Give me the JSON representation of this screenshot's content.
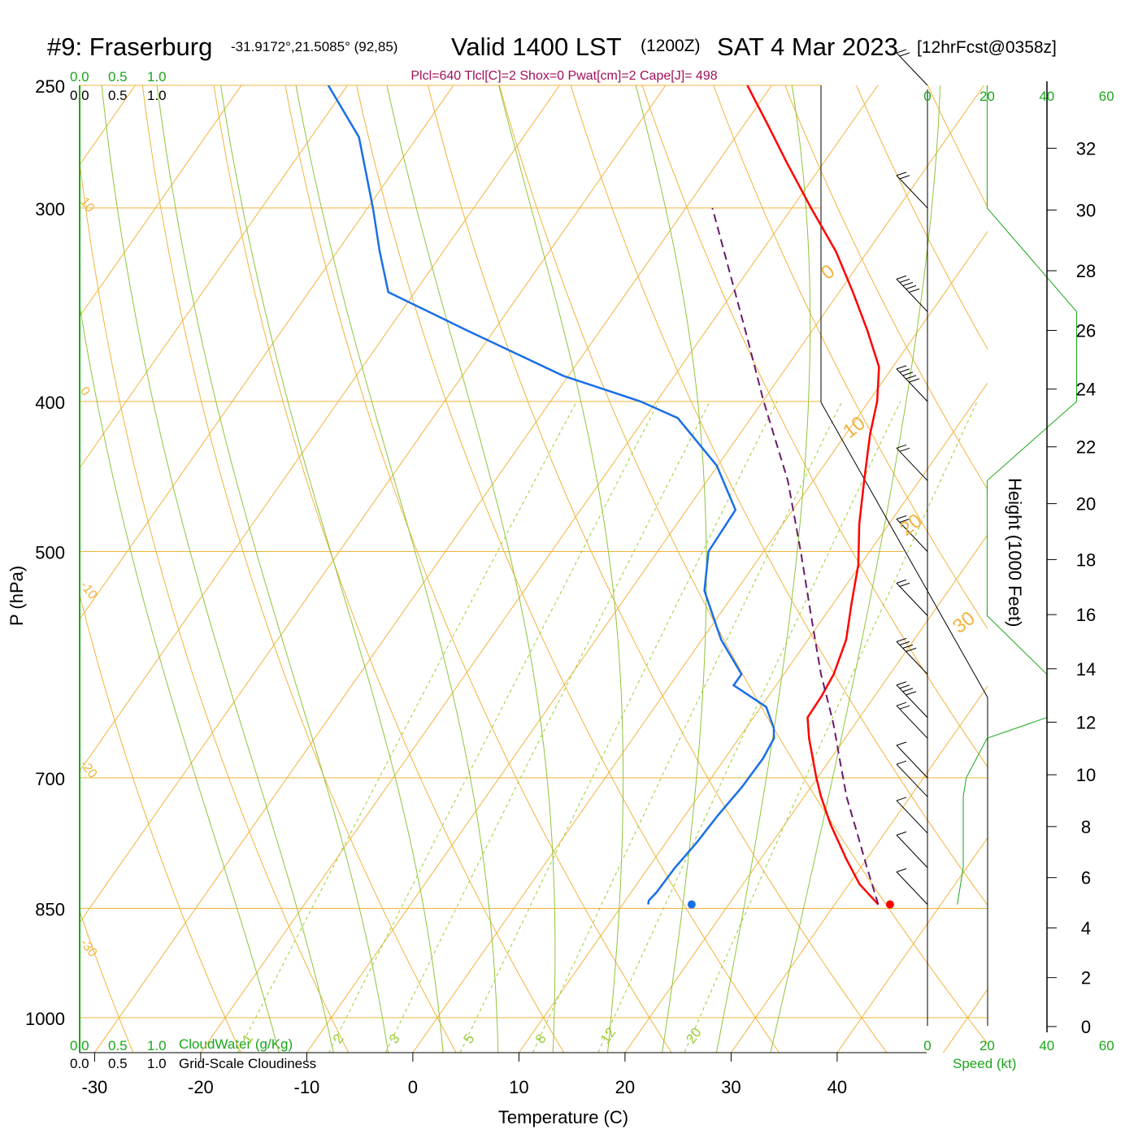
{
  "header": {
    "station": "#9: Fraserburg",
    "coords": "-31.9172°,21.5085° (92,85)",
    "valid": "Valid 1400 LST",
    "utc": "(1200Z)",
    "date": "SAT 4 Mar 2023",
    "forecast": "[12hrFcst@0358z]",
    "indices": "Plcl=640 Tlcl[C]=2 Shox=0 Pwat[cm]=2 Cape[J]= 498"
  },
  "labels": {
    "pressure_axis": "P (hPa)",
    "temperature_axis": "Temperature (C)",
    "height_axis": "Height (1000 Feet)",
    "speed_axis": "Speed (kt)",
    "cloudwater": "CloudWater (g/Kg)",
    "cloudiness": "Grid-Scale Cloudiness",
    "scale_ticks": [
      "0.0",
      "0.5",
      "1.0"
    ]
  },
  "colors": {
    "temperature": "#ff0000",
    "dewpoint": "#1a6fe6",
    "parcel": "#6a1a6a",
    "isotherm_isobar": "#f0b43c",
    "mixing_ratio": "#9acd32",
    "moist_adiabat": "#8fc43a",
    "green_text": "#1aa61a",
    "indices_text": "#a0105a"
  },
  "chart_data": {
    "type": "line",
    "subtype": "skew-t log-p",
    "pressure_levels": [
      250,
      300,
      400,
      500,
      700,
      850,
      1000
    ],
    "temperature_ticks": [
      -30,
      -20,
      -10,
      0,
      10,
      20,
      30,
      40
    ],
    "height_ticks": [
      0,
      2,
      4,
      6,
      8,
      10,
      12,
      14,
      16,
      18,
      20,
      22,
      24,
      26,
      28,
      30,
      32
    ],
    "speed_ticks": [
      0,
      20,
      40,
      60
    ],
    "isotherm_labels": [
      "10",
      "0",
      "-10",
      "-20",
      "-30",
      "0",
      "10",
      "20",
      "30"
    ],
    "mixing_ratio_labels": [
      "1",
      "2",
      "3",
      "5",
      "8",
      "12",
      "20"
    ],
    "series": [
      {
        "name": "temperature",
        "points": [
          [
            845,
            34.1
          ],
          [
            820,
            31.0
          ],
          [
            790,
            28.1
          ],
          [
            750,
            24.3
          ],
          [
            720,
            21.6
          ],
          [
            700,
            19.9
          ],
          [
            660,
            16.6
          ],
          [
            640,
            15.1
          ],
          [
            620,
            15.0
          ],
          [
            600,
            14.7
          ],
          [
            570,
            13.6
          ],
          [
            540,
            11.7
          ],
          [
            510,
            9.8
          ],
          [
            480,
            7.2
          ],
          [
            450,
            4.8
          ],
          [
            420,
            2.3
          ],
          [
            400,
            0.8
          ],
          [
            380,
            -1.3
          ],
          [
            360,
            -4.8
          ],
          [
            340,
            -8.7
          ],
          [
            320,
            -13.0
          ],
          [
            300,
            -18.2
          ],
          [
            280,
            -23.6
          ],
          [
            265,
            -27.8
          ],
          [
            250,
            -32.3
          ]
        ]
      },
      {
        "name": "dewpoint",
        "points": [
          [
            845,
            12.4
          ],
          [
            840,
            12.2
          ],
          [
            830,
            12.4
          ],
          [
            800,
            12.5
          ],
          [
            770,
            12.9
          ],
          [
            740,
            13.1
          ],
          [
            710,
            13.5
          ],
          [
            680,
            13.6
          ],
          [
            660,
            13.3
          ],
          [
            650,
            12.6
          ],
          [
            630,
            10.5
          ],
          [
            610,
            6.0
          ],
          [
            600,
            6.0
          ],
          [
            570,
            1.8
          ],
          [
            530,
            -3.0
          ],
          [
            500,
            -5.2
          ],
          [
            470,
            -5.4
          ],
          [
            440,
            -10.1
          ],
          [
            410,
            -16.9
          ],
          [
            400,
            -21.5
          ],
          [
            385,
            -30.5
          ],
          [
            360,
            -42.5
          ],
          [
            340,
            -52.5
          ],
          [
            320,
            -56.0
          ],
          [
            300,
            -59.5
          ],
          [
            270,
            -65.5
          ],
          [
            250,
            -71.8
          ]
        ]
      },
      {
        "name": "parcel",
        "points": [
          [
            845,
            34.1
          ],
          [
            800,
            30.6
          ],
          [
            760,
            27.4
          ],
          [
            720,
            24.0
          ],
          [
            680,
            20.8
          ],
          [
            650,
            18.3
          ],
          [
            640,
            17.4
          ],
          [
            600,
            13.5
          ],
          [
            550,
            8.7
          ],
          [
            500,
            3.5
          ],
          [
            450,
            -2.4
          ],
          [
            400,
            -9.9
          ],
          [
            360,
            -16.3
          ],
          [
            300,
            -27.5
          ]
        ]
      }
    ],
    "surface_points": [
      {
        "name": "temperature",
        "pressure": 845,
        "value": 35.2
      },
      {
        "name": "dewpoint",
        "pressure": 845,
        "value": 16.5
      }
    ],
    "wind_speed_kt": [
      [
        845,
        10
      ],
      [
        800,
        12
      ],
      [
        760,
        12
      ],
      [
        720,
        12
      ],
      [
        700,
        13
      ],
      [
        660,
        20
      ],
      [
        640,
        40
      ],
      [
        600,
        40
      ],
      [
        550,
        20
      ],
      [
        500,
        20
      ],
      [
        450,
        20
      ],
      [
        400,
        50
      ],
      [
        350,
        50
      ],
      [
        300,
        20
      ],
      [
        250,
        20
      ]
    ]
  }
}
